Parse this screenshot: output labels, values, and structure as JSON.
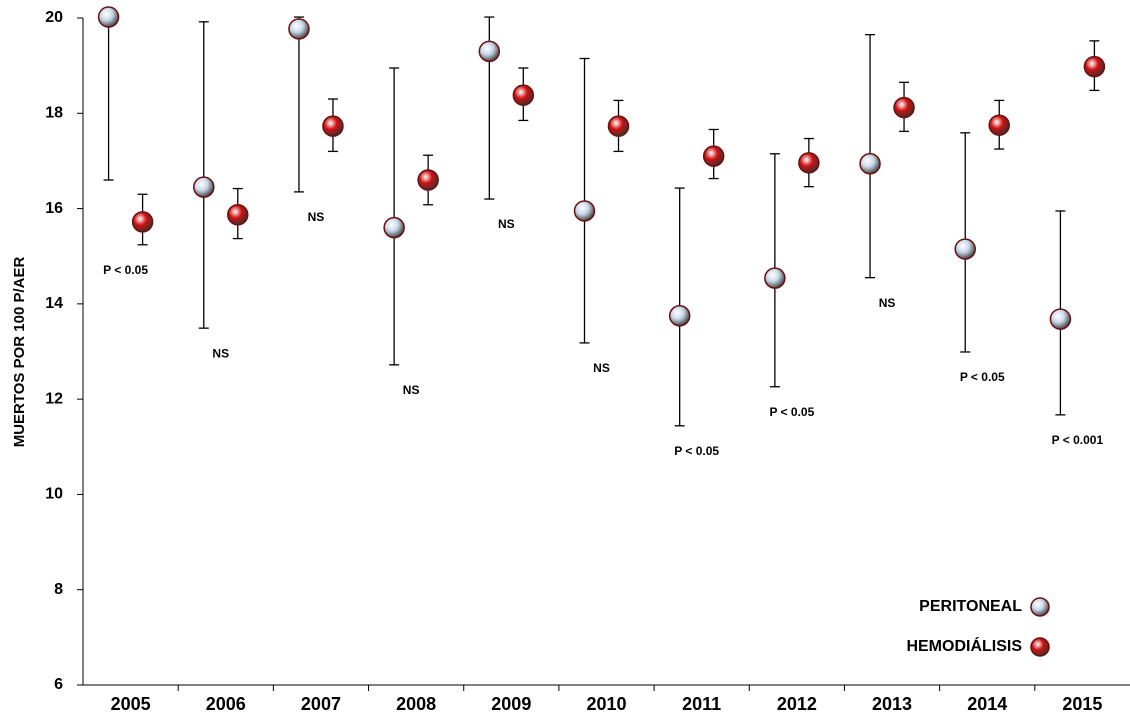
{
  "chart_data": {
    "type": "dot-errorbar",
    "y_label": "MUERTOS POR 100 P/AER",
    "categories": [
      "2005",
      "2006",
      "2007",
      "2008",
      "2009",
      "2010",
      "2011",
      "2012",
      "2013",
      "2014",
      "2015"
    ],
    "series": [
      {
        "name": "PERITONEAL",
        "color": "#c8d8e8",
        "values": [
          20.02,
          16.45,
          19.77,
          15.6,
          19.3,
          15.95,
          13.75,
          14.54,
          16.94,
          15.15,
          13.68
        ],
        "low": [
          16.6,
          13.49,
          16.35,
          12.72,
          16.2,
          13.18,
          11.44,
          12.26,
          14.55,
          12.99,
          11.67
        ],
        "high": [
          20.02,
          19.92,
          20.02,
          18.95,
          20.02,
          19.15,
          16.43,
          17.15,
          19.65,
          17.59,
          15.95
        ]
      },
      {
        "name": "HEMODIÁLISIS",
        "color": "#d01010",
        "values": [
          15.72,
          15.87,
          17.73,
          16.6,
          18.38,
          17.73,
          17.1,
          16.96,
          18.12,
          17.75,
          18.98
        ],
        "low": [
          15.24,
          15.37,
          17.2,
          16.08,
          17.85,
          17.2,
          16.63,
          16.46,
          17.62,
          17.25,
          18.48
        ],
        "high": [
          16.3,
          16.42,
          18.3,
          17.12,
          18.95,
          18.27,
          17.66,
          17.47,
          18.65,
          18.27,
          19.52
        ]
      }
    ],
    "p_values": [
      "P < 0.05",
      "NS",
      "NS",
      "NS",
      "NS",
      "NS",
      "P < 0.05",
      "P < 0.05",
      "NS",
      "P < 0.05",
      "P < 0.001"
    ],
    "ylim": [
      6,
      20
    ],
    "yticks": [
      6,
      8,
      10,
      12,
      14,
      16,
      18,
      20
    ],
    "legend": "bottom-right"
  }
}
